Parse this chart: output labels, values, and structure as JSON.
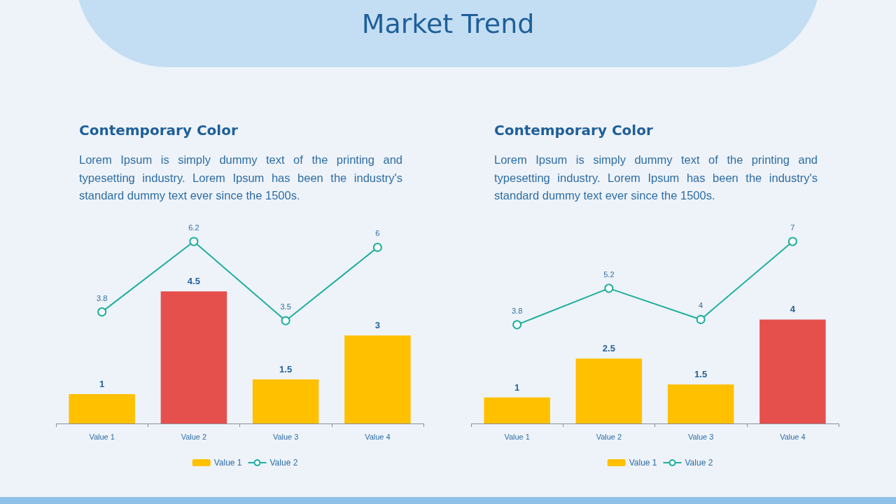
{
  "chart_data": [
    {
      "type": "bar",
      "title": "Contemporary Color",
      "subtitle": "Lorem Ipsum is simply dummy text of the printing and typesetting industry. Lorem Ipsum has been the industry's standard dummy text ever since the 1500s.",
      "annotations": [
        "Market Trend"
      ],
      "tick_labels": "x",
      "categories": [
        "Value 1",
        "Value 2",
        "Value 3",
        "Value 4"
      ],
      "series": [
        {
          "name": "Value 1",
          "color": "#ffc000",
          "colors": [
            "#ffc000",
            "#e5504d",
            "#ffc000",
            "#ffc000"
          ],
          "values": [
            1,
            4.5,
            1.5,
            3
          ]
        },
        {
          "name": "Value 2",
          "type": "line",
          "color": "#1fae9f",
          "values": [
            3.8,
            6.2,
            3.5,
            6
          ]
        }
      ],
      "data_labels": true,
      "legend": "bottom",
      "marker": "circle"
    },
    {
      "type": "bar",
      "title": "Contemporary Color",
      "subtitle": "Lorem Ipsum is simply dummy text of the printing and typesetting industry. Lorem Ipsum has been the industry's standard dummy text ever since the 1500s.",
      "tick_labels": "x",
      "categories": [
        "Value 1",
        "Value 2",
        "Value 3",
        "Value 4"
      ],
      "series": [
        {
          "name": "Value 1",
          "color": "#ffc000",
          "colors": [
            "#ffc000",
            "#ffc000",
            "#ffc000",
            "#e5504d"
          ],
          "values": [
            1,
            2.5,
            1.5,
            4
          ]
        },
        {
          "name": "Value 2",
          "type": "line",
          "color": "#1fae9f",
          "values": [
            3.8,
            5.2,
            4,
            7
          ]
        }
      ],
      "data_labels": true,
      "legend": "bottom",
      "marker": "circle"
    }
  ]
}
